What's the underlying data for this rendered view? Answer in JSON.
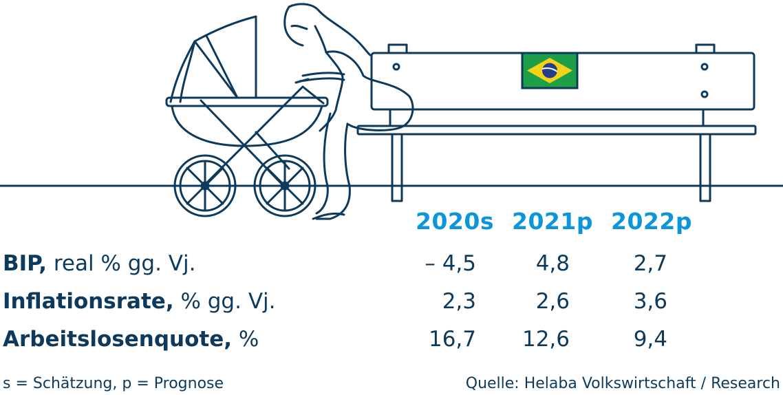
{
  "years": [
    "2020s",
    "2021p",
    "2022p"
  ],
  "rows": [
    {
      "label_bold": "BIP,",
      "label_rest": " real % gg. Vj.",
      "values": [
        "– 4,5",
        "4,8",
        "2,7"
      ]
    },
    {
      "label_bold": "Inflationsrate,",
      "label_rest": " % gg. Vj.",
      "values": [
        "2,3",
        "2,6",
        "3,6"
      ]
    },
    {
      "label_bold": "Arbeitslosenquote,",
      "label_rest": " %",
      "values": [
        "16,7",
        "12,6",
        "9,4"
      ]
    }
  ],
  "footnote": "s = Schätzung, p = Prognose",
  "source": "Quelle: Helaba Volkswirtschaft / Research",
  "colors": {
    "navy": "#0d3a5c",
    "accent": "#0c95d8",
    "flag_green": "#1e9e47",
    "flag_yellow": "#f4d21a",
    "flag_blue": "#243e8c"
  }
}
